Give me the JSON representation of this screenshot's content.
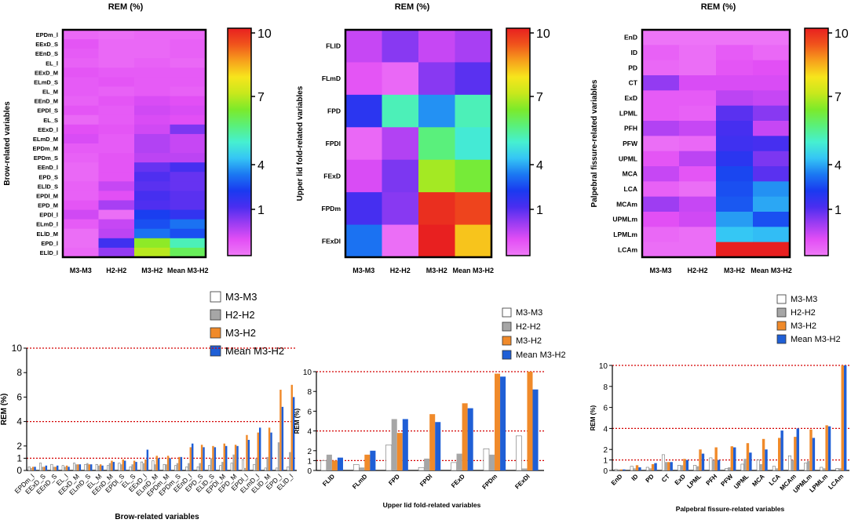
{
  "colors": {
    "m3m3": "#ffffff",
    "h2h2": "#a6a6a6",
    "m3h2": "#f08a2a",
    "mean": "#1f5fd6",
    "threshold": "#d40000",
    "scale": [
      "#ef7af7",
      "#e24ef5",
      "#9b3cf2",
      "#4a2ef0",
      "#1a3af0",
      "#1b78f2",
      "#35c6f5",
      "#46f0d0",
      "#5af07a",
      "#7cea2a",
      "#c8e81c",
      "#f7e51c",
      "#f7a01c",
      "#f0541c",
      "#e82020"
    ]
  },
  "colorbar": {
    "ticks": [
      "1",
      "4",
      "7",
      "10"
    ]
  },
  "chart_data": [
    {
      "type": "heatmap",
      "title": "REM (%)",
      "ylabel": "Brow-related variables",
      "columns": [
        "M3-M3",
        "H2-H2",
        "M3-H2",
        "Mean M3-H2"
      ],
      "rows": [
        "EPDm_l",
        "EExD_S",
        "EEnD_S",
        "EL_l",
        "EExD_M",
        "ELmD_S",
        "EL_M",
        "EEnD_M",
        "EPDl_S",
        "EL_S",
        "EExD_l",
        "ELmD_M",
        "EPDm_M",
        "EPDm_S",
        "EEnD_l",
        "EPD_S",
        "ELlD_S",
        "EPDl_M",
        "EPD_M",
        "EPDl_l",
        "ELmD_l",
        "ELlD_M",
        "EPD_l",
        "ELlD_l"
      ],
      "values": [
        [
          0.3,
          0.2,
          0.3,
          0.3
        ],
        [
          0.6,
          0.3,
          0.3,
          0.4
        ],
        [
          0.5,
          0.3,
          0.3,
          0.4
        ],
        [
          0.4,
          0.3,
          0.4,
          0.3
        ],
        [
          0.6,
          0.5,
          0.5,
          0.5
        ],
        [
          0.5,
          0.6,
          0.5,
          0.5
        ],
        [
          0.5,
          0.4,
          0.5,
          0.4
        ],
        [
          0.4,
          0.6,
          0.8,
          0.7
        ],
        [
          0.6,
          0.5,
          0.9,
          0.8
        ],
        [
          0.3,
          0.5,
          0.8,
          0.7
        ],
        [
          0.7,
          0.6,
          0.9,
          1.7
        ],
        [
          0.8,
          0.5,
          1.2,
          1.0
        ],
        [
          0.5,
          0.5,
          1.2,
          1.0
        ],
        [
          0.4,
          0.6,
          1.1,
          1.1
        ],
        [
          0.3,
          0.6,
          1.9,
          2.2
        ],
        [
          0.3,
          0.6,
          2.1,
          1.9
        ],
        [
          0.4,
          1.0,
          2.0,
          1.9
        ],
        [
          0.4,
          0.7,
          2.2,
          2.0
        ],
        [
          0.6,
          1.3,
          2.1,
          2.0
        ],
        [
          0.9,
          0.2,
          2.9,
          2.5
        ],
        [
          0.5,
          1.0,
          3.1,
          3.5
        ],
        [
          0.2,
          1.1,
          3.5,
          3.1
        ],
        [
          0.2,
          2.3,
          6.6,
          5.2
        ],
        [
          0.3,
          1.5,
          7.0,
          6.0
        ]
      ]
    },
    {
      "type": "heatmap",
      "title": "REM (%)",
      "ylabel": "Upper lid fold-related variables",
      "columns": [
        "M3-M3",
        "H2-H2",
        "M3-H2",
        "Mean M3-H2"
      ],
      "rows": [
        "FLlD",
        "FLmD",
        "FPD",
        "FPDl",
        "FExD",
        "FPDm",
        "FExDl"
      ],
      "values": [
        [
          1.0,
          1.6,
          1.0,
          1.3
        ],
        [
          0.6,
          0.3,
          1.6,
          2.0
        ],
        [
          2.6,
          5.2,
          3.8,
          5.2
        ],
        [
          0.3,
          1.2,
          5.7,
          4.9
        ],
        [
          0.8,
          1.7,
          6.8,
          6.3
        ],
        [
          2.2,
          1.6,
          9.8,
          9.5
        ],
        [
          3.5,
          0.2,
          10.0,
          8.2
        ]
      ]
    },
    {
      "type": "heatmap",
      "title": "REM (%)",
      "ylabel": "Palpebral fissure-related variables",
      "columns": [
        "M3-M3",
        "H2-H2",
        "M3-H2",
        "Mean M3-H2"
      ],
      "rows": [
        "EnD",
        "ID",
        "PD",
        "CT",
        "ExD",
        "LPML",
        "PFH",
        "PFW",
        "UPML",
        "MCA",
        "LCA",
        "MCAm",
        "UPMLm",
        "LPMLm",
        "LCAm"
      ],
      "values": [
        [
          0.1,
          0.1,
          0.1,
          0.1
        ],
        [
          0.4,
          0.2,
          0.5,
          0.3
        ],
        [
          0.3,
          0.2,
          0.6,
          0.7
        ],
        [
          1.5,
          0.8,
          0.8,
          0.8
        ],
        [
          0.5,
          0.5,
          1.1,
          1.0
        ],
        [
          0.5,
          0.4,
          2.0,
          1.6
        ],
        [
          1.2,
          1.0,
          2.2,
          1.0
        ],
        [
          0.2,
          0.3,
          2.3,
          2.2
        ],
        [
          0.6,
          1.1,
          2.6,
          1.7
        ],
        [
          1.0,
          0.6,
          3.0,
          2.0
        ],
        [
          0.4,
          0.2,
          3.1,
          3.8
        ],
        [
          1.4,
          1.0,
          3.2,
          4.0
        ],
        [
          0.7,
          0.9,
          3.9,
          3.1
        ],
        [
          0.3,
          0.2,
          4.3,
          4.2
        ],
        [
          0.2,
          0.2,
          10.0,
          10.0
        ]
      ]
    },
    {
      "type": "bar",
      "ylabel": "REM (%)",
      "xlabel": "Brow-related variables",
      "ylim": [
        0,
        10
      ],
      "yticks": [
        "0",
        "1",
        "2",
        "4",
        "6",
        "8",
        "10"
      ],
      "thresholds": [
        1,
        4,
        10
      ],
      "source": 0,
      "legend": [
        "M3-M3",
        "H2-H2",
        "M3-H2",
        "Mean M3-H2"
      ]
    },
    {
      "type": "bar",
      "ylabel": "REM (%)",
      "xlabel": "Upper lid fold-related variables",
      "ylim": [
        0,
        10
      ],
      "yticks": [
        "0",
        "1",
        "2",
        "4",
        "6",
        "8",
        "10"
      ],
      "thresholds": [
        1,
        4,
        10
      ],
      "source": 1,
      "legend": [
        "M3-M3",
        "H2-H2",
        "M3-H2",
        "Mean M3-H2"
      ]
    },
    {
      "type": "bar",
      "ylabel": "REM (%)",
      "xlabel": "Palpebral fissure-related variables",
      "ylim": [
        0,
        10
      ],
      "yticks": [
        "0",
        "1",
        "2",
        "4",
        "6",
        "8",
        "10"
      ],
      "thresholds": [
        1,
        4,
        10
      ],
      "source": 2,
      "legend": [
        "M3-M3",
        "H2-H2",
        "M3-H2",
        "Mean M3-H2"
      ]
    }
  ]
}
